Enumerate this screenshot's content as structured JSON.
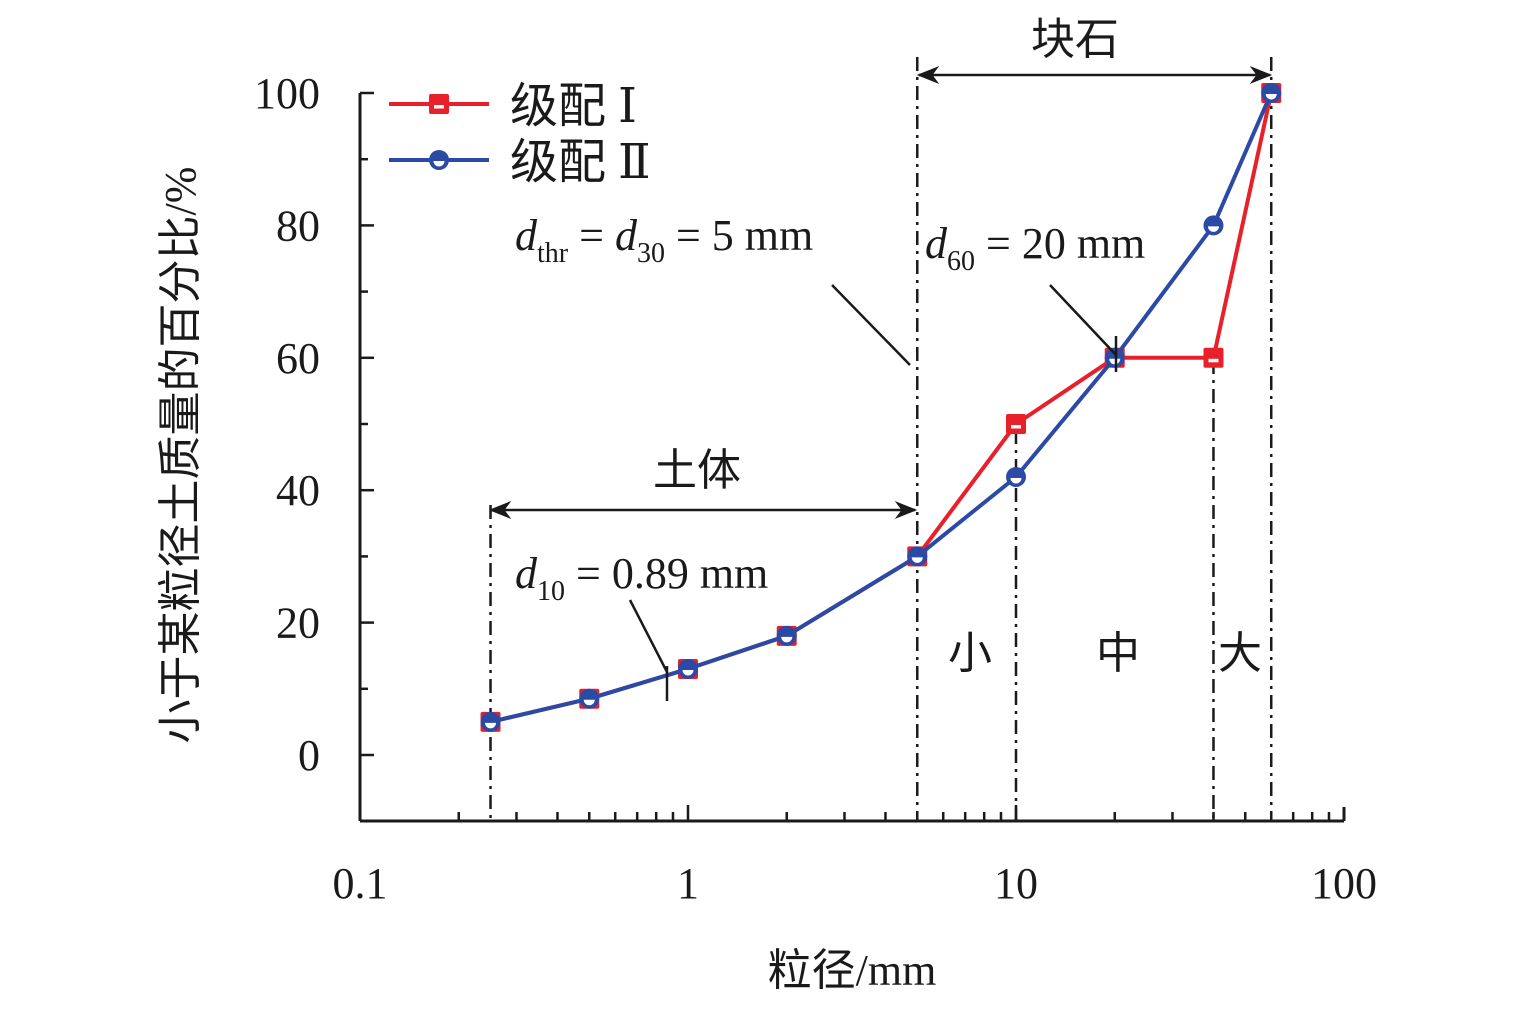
{
  "chart_data": {
    "type": "line",
    "xscale": "log",
    "xlim": [
      0.1,
      100
    ],
    "ylim": [
      -10,
      100
    ],
    "xlabel": "粒径/mm",
    "ylabel": "小于某粒径土质量的百分比/%",
    "xticks": [
      "0.1",
      "1",
      "10",
      "100"
    ],
    "yticks": [
      "0",
      "20",
      "40",
      "60",
      "80",
      "100"
    ],
    "grid": false,
    "legend_position": "top-left",
    "x": [
      0.25,
      0.5,
      1,
      2,
      5,
      10,
      20,
      40,
      60
    ],
    "series": [
      {
        "name": "级配 Ⅰ",
        "color": "#e8202a",
        "marker": "square",
        "values": [
          5,
          8.5,
          13,
          18,
          30,
          50,
          60,
          60,
          100
        ]
      },
      {
        "name": "级配 Ⅱ",
        "color": "#2b4aa6",
        "marker": "circle",
        "values": [
          5,
          8.5,
          13,
          18,
          30,
          42,
          60,
          80,
          100
        ]
      }
    ],
    "reference_lines_x": [
      0.25,
      5,
      10,
      40,
      60
    ],
    "annotations": {
      "block_stone": "块石",
      "soil": "土体",
      "small": "小",
      "medium": "中",
      "large": "大",
      "dthr": {
        "d1": "d",
        "s1": "thr",
        "eq1": " = ",
        "d2": "d",
        "s2": "30",
        "rest": " = 5 mm"
      },
      "d60": {
        "d": "d",
        "s": "60",
        "rest": " = 20 mm"
      },
      "d10": {
        "d": "d",
        "s": "10",
        "rest": " = 0.89 mm"
      }
    }
  }
}
